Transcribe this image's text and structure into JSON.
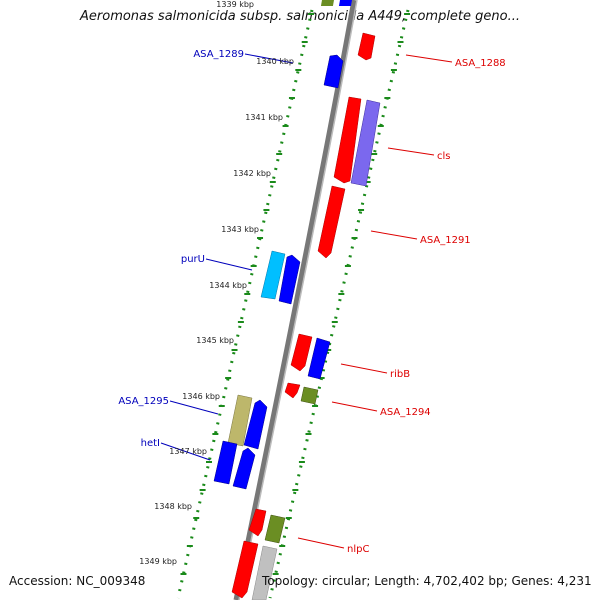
{
  "title": "Aeromonas salmonicida subsp. salmonicida A449, complete geno...",
  "accession": "Accession: NC_009348",
  "topology": "Topology: circular; Length: 4,702,402 bp; Genes: 4,231",
  "colors": {
    "forward": "#ff0000",
    "reverse": "#0000ff",
    "other_a": "#6b8e23",
    "other_b": "#7b68ee",
    "other_c": "#00bfff",
    "other_d": "#bdb76b",
    "other_e": "#c0c0c0",
    "tick": "#007700",
    "backbone": "#777777",
    "label_forward": "#dd0000",
    "label_reverse": "#0000bb"
  },
  "ruler": [
    {
      "label": "1339 kbp"
    },
    {
      "label": "1340 kbp"
    },
    {
      "label": "1341 kbp"
    },
    {
      "label": "1342 kbp"
    },
    {
      "label": "1343 kbp"
    },
    {
      "label": "1344 kbp"
    },
    {
      "label": "1345 kbp"
    },
    {
      "label": "1346 kbp"
    },
    {
      "label": "1347 kbp"
    },
    {
      "label": "1348 kbp"
    },
    {
      "label": "1349 kbp"
    }
  ],
  "gene_labels": {
    "asa_1288": "ASA_1288",
    "asa_1289": "ASA_1289",
    "cls": "cls",
    "asa_1291": "ASA_1291",
    "puru": "purU",
    "ribb": "ribB",
    "asa_1294": "ASA_1294",
    "asa_1295": "ASA_1295",
    "heti": "hetI",
    "nlpc": "nlpC"
  }
}
